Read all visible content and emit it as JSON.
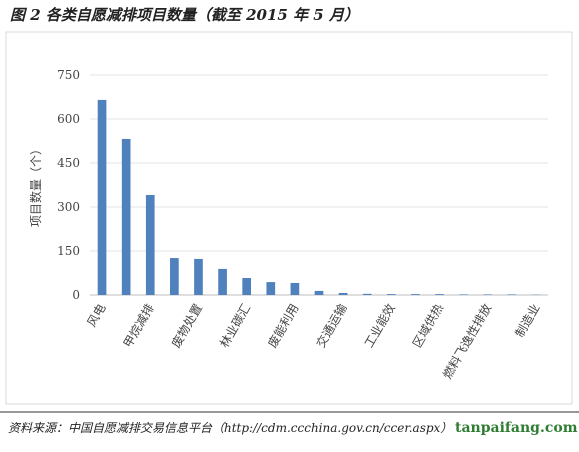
{
  "chart_data": {
    "type": "bar",
    "title": "图 2   各类自愿减排项目数量（截至 2015 年 5 月）",
    "ylabel": "项目数量（个）",
    "categories": [
      "风电",
      null,
      "甲烷减排",
      null,
      "废物处置",
      null,
      "林业碳汇",
      null,
      "废能利用",
      null,
      "交通运输",
      null,
      "工业能效",
      null,
      "区域供热",
      null,
      "燃料飞逸性排放",
      null,
      "制造业"
    ],
    "values": [
      665,
      532,
      341,
      126,
      123,
      89,
      58,
      44,
      41,
      14,
      7,
      4,
      3,
      3,
      3,
      2,
      2,
      2,
      1
    ],
    "color": "#4f81bd",
    "ylim": [
      0,
      750
    ],
    "yticks": [
      0,
      150,
      300,
      450,
      600,
      750
    ],
    "grid": true,
    "source": "资料来源：中国自愿减排交易信息平台（http://cdm.ccchina.gov.cn/ccer.aspx）",
    "watermark": "tanpaifang.com"
  }
}
